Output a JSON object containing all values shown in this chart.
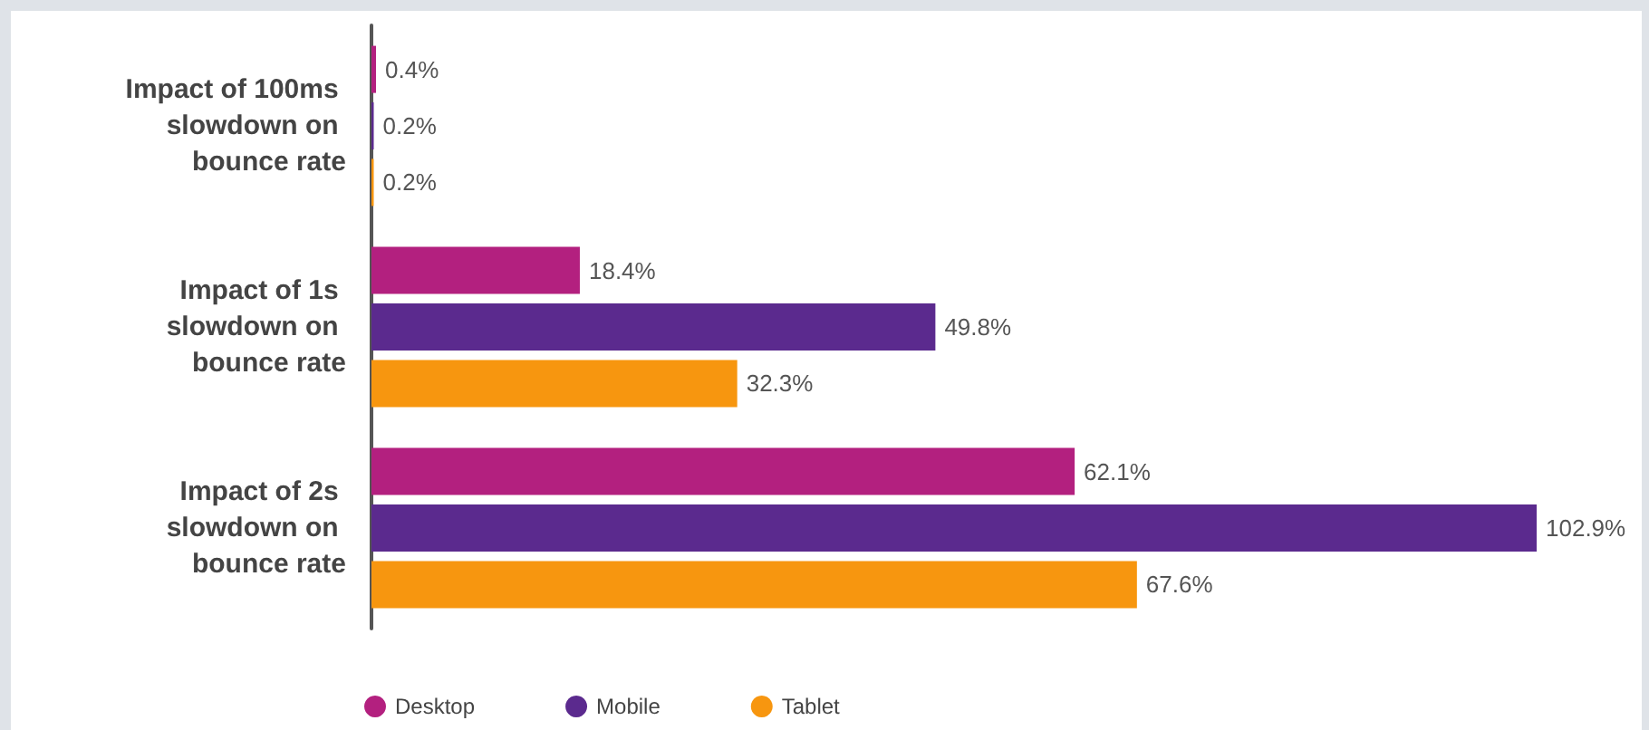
{
  "chart_data": {
    "type": "bar",
    "orientation": "horizontal",
    "categories": [
      "Impact of 100ms slowdown on bounce rate",
      "Impact of 1s slowdown on bounce rate",
      "Impact of 2s slowdown on bounce rate"
    ],
    "series": [
      {
        "name": "Desktop",
        "color": "#b3207f",
        "values": [
          0.4,
          18.4,
          62.1
        ],
        "value_labels": [
          "0.4%",
          "18.4%",
          "62.1%"
        ]
      },
      {
        "name": "Mobile",
        "color": "#5b2a8e",
        "values": [
          0.2,
          49.8,
          102.9
        ],
        "value_labels": [
          "0.2%",
          "49.8%",
          "102.9%"
        ]
      },
      {
        "name": "Tablet",
        "color": "#f7960f",
        "values": [
          0.2,
          32.3,
          67.6
        ],
        "value_labels": [
          "0.2%",
          "32.3%",
          "67.6%"
        ]
      }
    ],
    "legend": "bottom left",
    "grid": false
  }
}
